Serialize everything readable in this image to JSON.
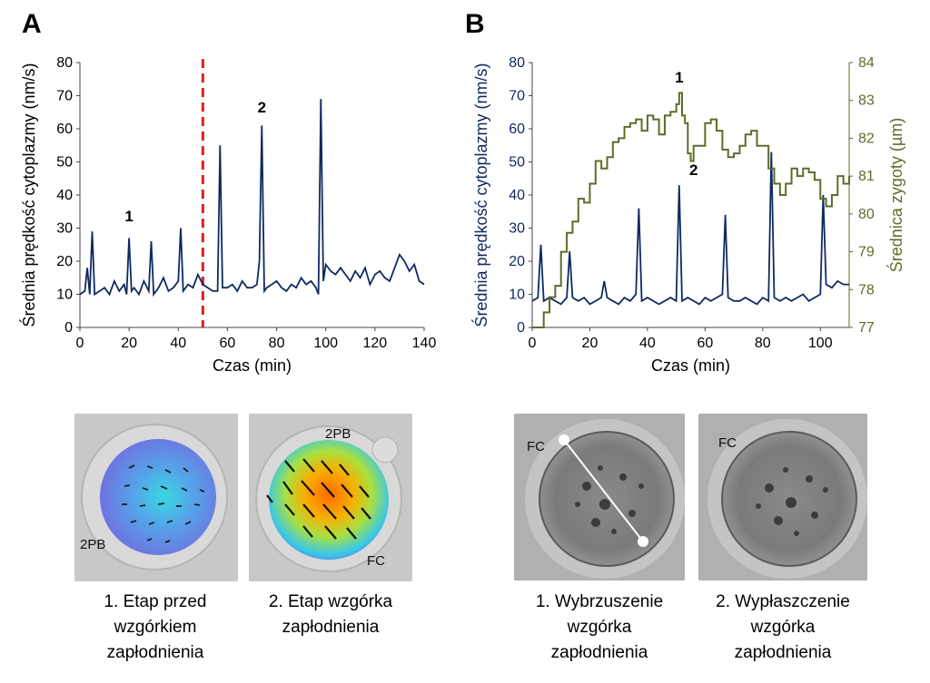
{
  "colors": {
    "speed": "#0f2a60",
    "zygote": "#5a6e2a",
    "marker": "#e02020"
  },
  "panels": {
    "a": "A",
    "b": "B"
  },
  "chart_data": [
    {
      "type": "line",
      "panel": "A",
      "xlabel": "Czas (min)",
      "ylabel": "Średnia prędkość cytoplazmy (nm/s)",
      "xlim": [
        0,
        140
      ],
      "ylim": [
        0,
        80
      ],
      "xticks": [
        "0",
        "20",
        "40",
        "60",
        "80",
        "100",
        "120",
        "140"
      ],
      "yticks": [
        "0",
        "10",
        "20",
        "30",
        "40",
        "50",
        "60",
        "70",
        "80"
      ],
      "vline_x": 50,
      "annotations": [
        {
          "text": "1",
          "x": 20,
          "y": 32
        },
        {
          "text": "2",
          "x": 74,
          "y": 65
        }
      ],
      "series": [
        {
          "color": "#0f2a60",
          "x": [
            0,
            2,
            3,
            4,
            5,
            6,
            8,
            10,
            12,
            14,
            16,
            18,
            19,
            20,
            21,
            22,
            24,
            26,
            28,
            29,
            30,
            32,
            34,
            36,
            38,
            40,
            41,
            42,
            44,
            46,
            48,
            50,
            52,
            54,
            56,
            57,
            58,
            60,
            62,
            64,
            66,
            68,
            70,
            72,
            73,
            74,
            75,
            76,
            78,
            80,
            82,
            84,
            86,
            88,
            90,
            92,
            94,
            96,
            97,
            98,
            99,
            100,
            102,
            104,
            106,
            108,
            110,
            112,
            114,
            116,
            118,
            120,
            122,
            124,
            126,
            128,
            130,
            132,
            134,
            136,
            138,
            140
          ],
          "y": [
            10,
            11,
            18,
            10,
            29,
            10,
            11,
            12,
            10,
            14,
            11,
            13,
            10,
            27,
            11,
            12,
            10,
            14,
            11,
            26,
            10,
            12,
            15,
            11,
            12,
            14,
            30,
            11,
            13,
            12,
            16,
            13,
            12,
            11,
            11,
            55,
            12,
            12,
            13,
            11,
            14,
            12,
            12,
            13,
            20,
            61,
            11,
            12,
            13,
            14,
            12,
            11,
            13,
            12,
            15,
            13,
            14,
            12,
            10,
            69,
            14,
            19,
            17,
            16,
            18,
            16,
            14,
            17,
            15,
            18,
            13,
            16,
            17,
            15,
            14,
            18,
            22,
            20,
            17,
            19,
            14,
            13
          ]
        }
      ]
    },
    {
      "type": "line",
      "panel": "B",
      "xlabel": "Czas (min)",
      "ylabel": "Średnia prędkość cytoplazmy (nm/s)",
      "y2label": "Średnica zygoty (µm)",
      "xlim": [
        0,
        110
      ],
      "ylim": [
        0,
        80
      ],
      "y2lim": [
        77,
        84
      ],
      "xticks": [
        "0",
        "20",
        "40",
        "60",
        "80",
        "100"
      ],
      "yticks": [
        "0",
        "10",
        "20",
        "30",
        "40",
        "50",
        "60",
        "70",
        "80"
      ],
      "y2ticks": [
        "77",
        "78",
        "79",
        "80",
        "81",
        "82",
        "83",
        "84"
      ],
      "annotations": [
        {
          "text": "1",
          "x": 51,
          "y": 74
        },
        {
          "text": "2",
          "x": 56,
          "y": 46
        }
      ],
      "series": [
        {
          "name": "speed",
          "axis": "left",
          "color": "#0f2a60",
          "x": [
            0,
            2,
            3,
            4,
            6,
            8,
            10,
            12,
            13,
            14,
            16,
            18,
            20,
            22,
            24,
            25,
            26,
            28,
            30,
            32,
            34,
            36,
            37,
            38,
            40,
            42,
            44,
            46,
            48,
            50,
            51,
            52,
            54,
            56,
            58,
            60,
            62,
            64,
            66,
            67,
            68,
            70,
            72,
            74,
            76,
            78,
            80,
            82,
            83,
            84,
            86,
            88,
            90,
            92,
            94,
            96,
            98,
            100,
            101,
            102,
            104,
            106,
            108,
            110
          ],
          "y": [
            8,
            9,
            25,
            8,
            9,
            8,
            7,
            9,
            23,
            9,
            8,
            9,
            7,
            8,
            9,
            14,
            9,
            8,
            7,
            9,
            8,
            10,
            36,
            8,
            9,
            8,
            7,
            8,
            9,
            8,
            43,
            8,
            9,
            8,
            7,
            9,
            8,
            9,
            10,
            34,
            9,
            8,
            8,
            9,
            8,
            7,
            9,
            8,
            53,
            9,
            8,
            9,
            8,
            9,
            10,
            8,
            9,
            10,
            40,
            13,
            12,
            14,
            13,
            13
          ]
        },
        {
          "name": "zygote",
          "axis": "right",
          "color": "#5a6e2a",
          "x": [
            0,
            2,
            4,
            6,
            8,
            10,
            12,
            14,
            16,
            18,
            20,
            22,
            24,
            26,
            28,
            30,
            32,
            34,
            36,
            38,
            40,
            42,
            44,
            46,
            48,
            50,
            51,
            52,
            53,
            54,
            55,
            56,
            58,
            60,
            62,
            64,
            66,
            68,
            70,
            72,
            74,
            76,
            78,
            80,
            82,
            84,
            86,
            88,
            90,
            92,
            94,
            96,
            98,
            100,
            102,
            104,
            106,
            108,
            110
          ],
          "y": [
            77,
            77,
            77.4,
            77.8,
            78.1,
            79,
            79.5,
            79.8,
            80.4,
            80.3,
            80.8,
            81.4,
            81.2,
            81.5,
            81.9,
            82,
            82.3,
            82.4,
            82.5,
            82.2,
            82.6,
            82.5,
            82.1,
            82.6,
            82.7,
            82.9,
            83.2,
            82.6,
            82.4,
            81.6,
            81.4,
            81.8,
            81.8,
            82.4,
            82.5,
            82.2,
            81.7,
            81.5,
            81.6,
            81.8,
            82.1,
            82.2,
            81.8,
            81.8,
            81.2,
            80.8,
            80.5,
            80.8,
            81.2,
            81.0,
            81.2,
            81.1,
            80.9,
            80.4,
            80.2,
            80.5,
            81.0,
            80.8,
            81.0
          ]
        }
      ]
    }
  ],
  "images": {
    "a1": {
      "label_2pb": "2PB"
    },
    "a2": {
      "label_2pb": "2PB",
      "label_fc": "FC"
    },
    "b1": {
      "label_fc": "FC"
    },
    "b2": {
      "label_fc": "FC"
    }
  },
  "captions": {
    "a1": [
      "1. Etap przed",
      "wzgórkiem",
      "zapłodnienia"
    ],
    "a2": [
      "2. Etap wzgórka",
      "zapłodnienia"
    ],
    "b1": [
      "1. Wybrzuszenie",
      "wzgórka",
      "zapłodnienia"
    ],
    "b2": [
      "2. Wypłaszczenie",
      "wzgórka",
      "zapłodnienia"
    ]
  }
}
